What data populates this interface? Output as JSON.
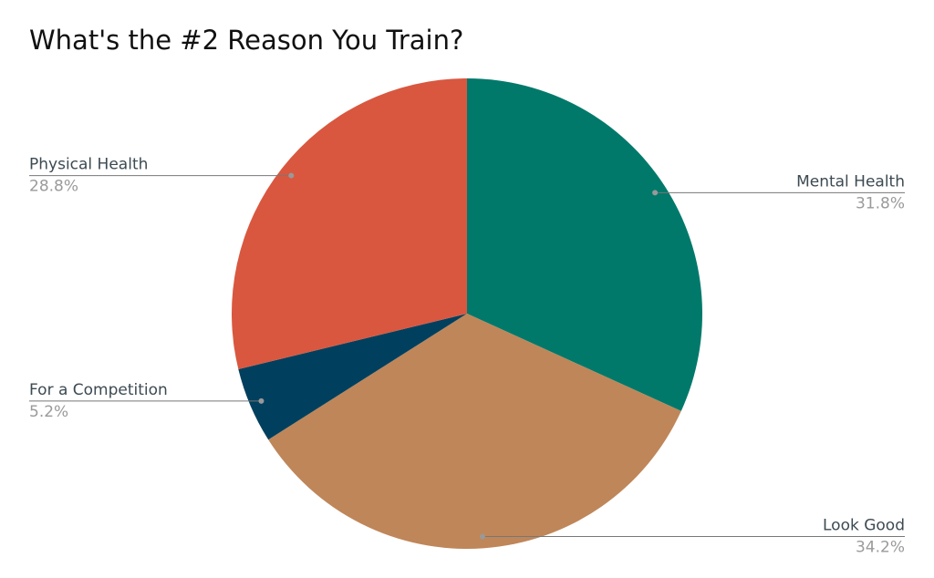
{
  "chart_data": {
    "type": "pie",
    "title": "What's the #2 Reason You Train?",
    "categories": [
      "Mental Health",
      "Look Good",
      "For a Competition",
      "Physical Health"
    ],
    "values": [
      31.8,
      34.2,
      5.2,
      28.8
    ],
    "value_labels": [
      "31.8%",
      "34.2%",
      "5.2%",
      "28.8%"
    ],
    "colors": [
      "#00796b",
      "#bf8659",
      "#00405e",
      "#d9573f"
    ]
  }
}
